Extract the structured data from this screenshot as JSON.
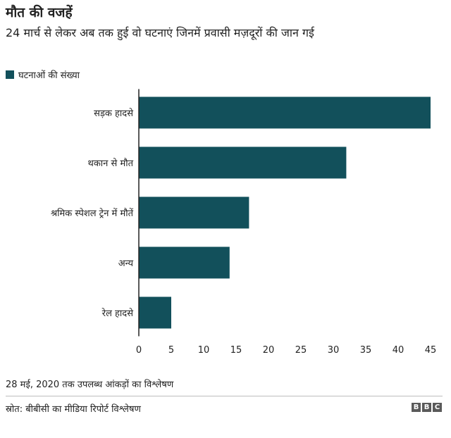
{
  "title": "मौत की वजहें",
  "subtitle": "24 मार्च से लेकर अब तक हुई वो घटनाएं जिनमें प्रवासी मज़दूरों की जान गई",
  "legend_label": "घटनाओं की संख्या",
  "note": "28 मई, 2020 तक उपलब्ध आंकड़ों का विश्लेषण",
  "source": "स्रोत: बीबीसी का मीडिया रिपोर्ट विश्लेषण",
  "logo_letters": [
    "B",
    "B",
    "C"
  ],
  "colors": {
    "bar": "#12505b",
    "axis": "#222222"
  },
  "chart_data": {
    "type": "bar",
    "orientation": "horizontal",
    "categories": [
      "सड़क हादसे",
      "थकान से मौत",
      "श्रमिक स्पेशल ट्रेन में मौतें",
      "अन्य",
      "रेल हादसे"
    ],
    "series": [
      {
        "name": "घटनाओं की संख्या",
        "values": [
          45,
          32,
          17,
          14,
          5
        ]
      }
    ],
    "xlim": [
      0,
      45
    ],
    "xticks": [
      0,
      5,
      10,
      15,
      20,
      25,
      30,
      35,
      40,
      45
    ],
    "grid": false,
    "legend_position": "top-left"
  }
}
